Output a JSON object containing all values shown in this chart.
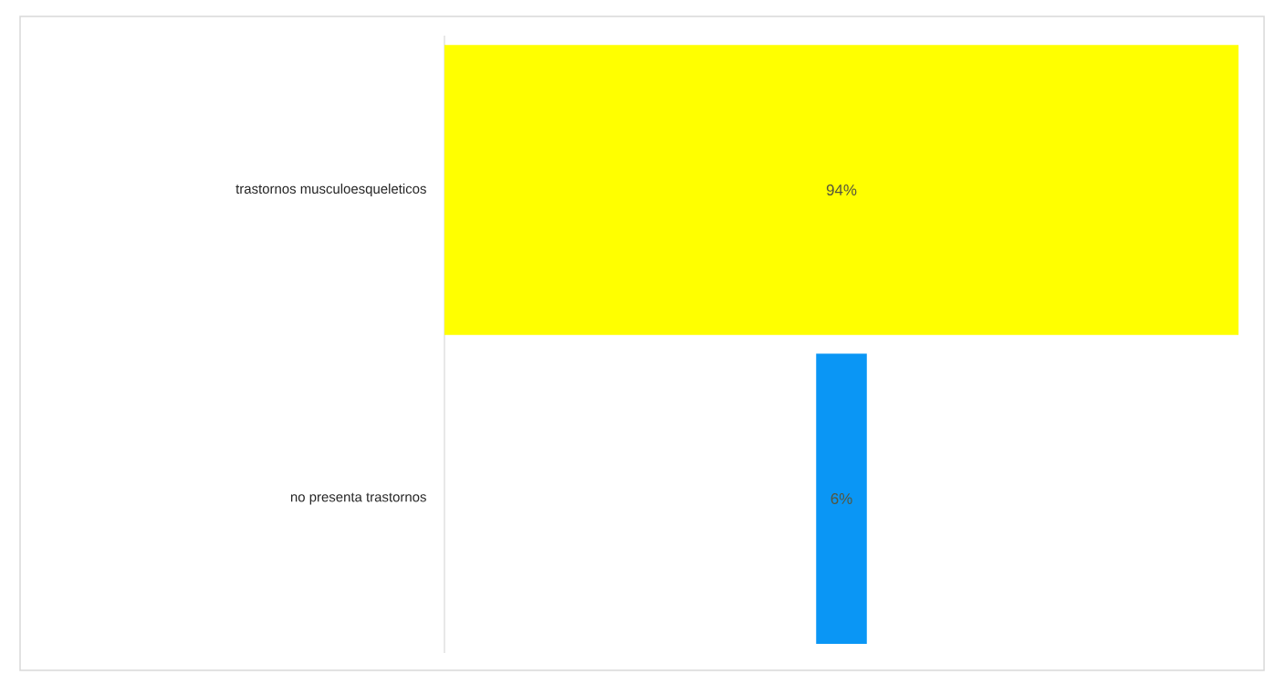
{
  "chart_data": {
    "type": "other",
    "categories": [
      "trastornos musculoesqueleticos",
      "no presenta trastornos"
    ],
    "values": [
      94,
      6
    ],
    "colors": [
      "#ffff00",
      "#0a96f5"
    ],
    "value_labels": [
      "94%",
      "6%"
    ]
  }
}
